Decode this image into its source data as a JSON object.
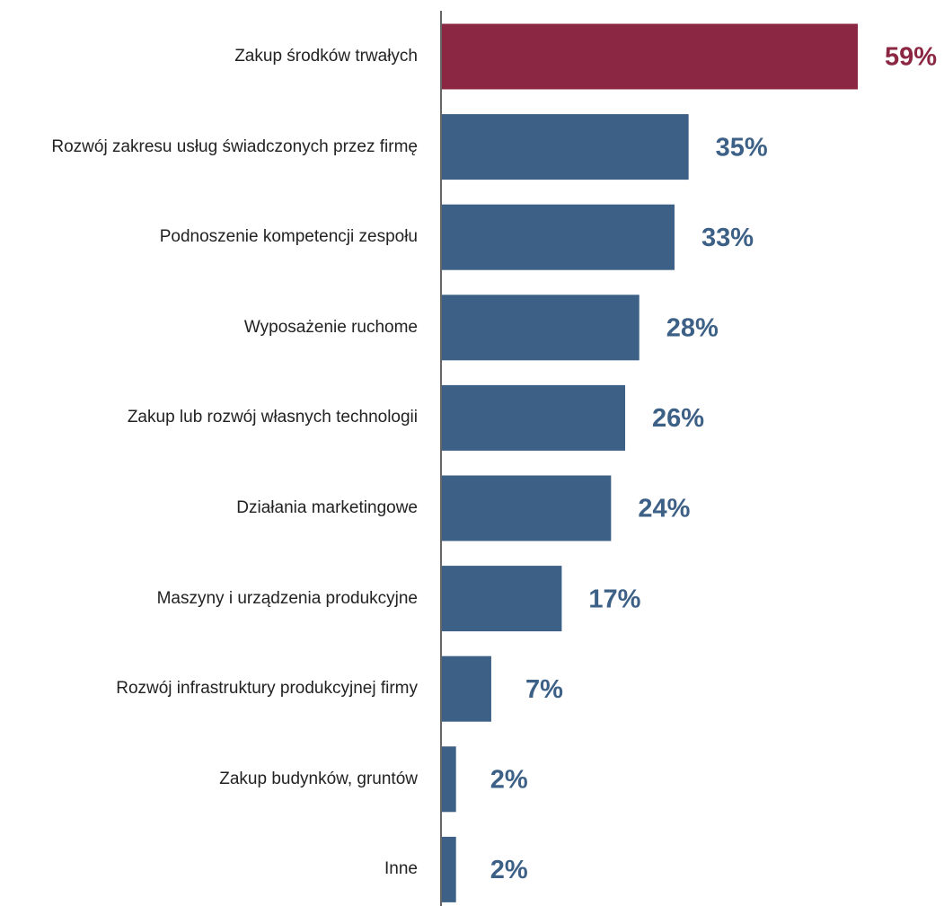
{
  "chart_data": {
    "type": "hbar",
    "categories": [
      "Zakup środków trwałych",
      "Rozwój zakresu usług świadczonych przez firmę",
      "Podnoszenie kompetencji zespołu",
      "Wyposażenie ruchome",
      "Zakup lub rozwój własnych technologii",
      "Działania marketingowe",
      "Maszyny i urządzenia produkcyjne",
      "Rozwój infrastruktury produkcyjnej firmy",
      "Zakup budynków, gruntów",
      "Inne"
    ],
    "values": [
      59,
      35,
      33,
      28,
      26,
      24,
      17,
      7,
      2,
      2
    ],
    "value_labels": [
      "59%",
      "35%",
      "33%",
      "28%",
      "26%",
      "24%",
      "17%",
      "7%",
      "2%",
      "2%"
    ],
    "colors": [
      "#8b2742",
      "#3d6186",
      "#3d6186",
      "#3d6186",
      "#3d6186",
      "#3d6186",
      "#3d6186",
      "#3d6186",
      "#3d6186",
      "#3d6186"
    ]
  }
}
